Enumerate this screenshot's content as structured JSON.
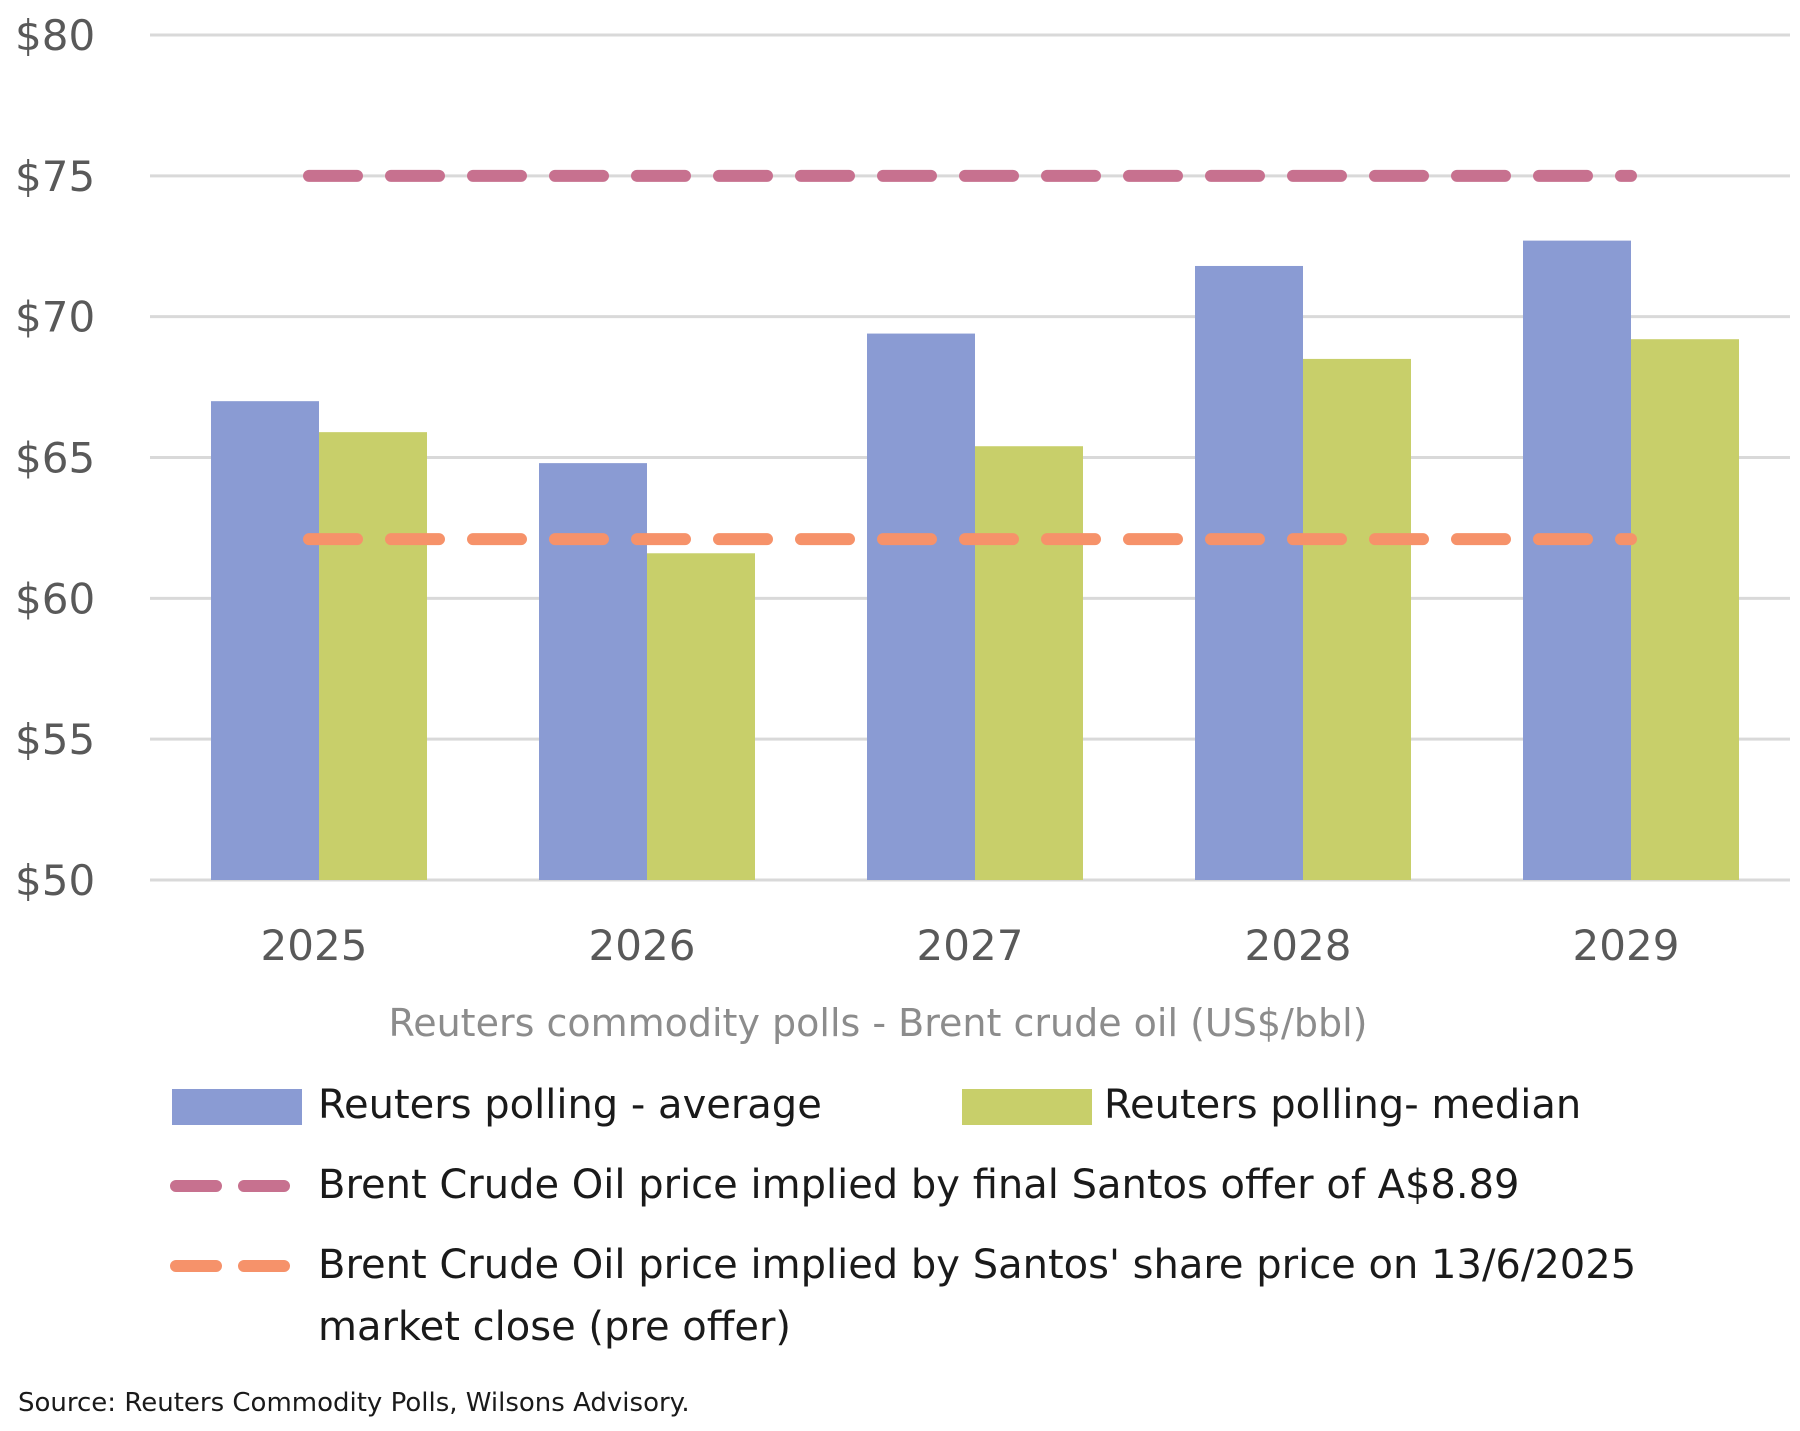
{
  "chart_data": {
    "type": "bar",
    "title": "",
    "xlabel": "Reuters commodity polls - Brent crude oil (US$/bbl)",
    "ylabel": "",
    "categories": [
      "2025",
      "2026",
      "2027",
      "2028",
      "2029"
    ],
    "ylim": [
      50,
      80
    ],
    "yticks": [
      50,
      55,
      60,
      65,
      70,
      75,
      80
    ],
    "ytick_labels": [
      "$50",
      "$55",
      "$60",
      "$65",
      "$70",
      "$75",
      "$80"
    ],
    "grid": true,
    "series": [
      {
        "name": "Reuters polling - average",
        "kind": "bar",
        "color": "#8a9bd3",
        "values": [
          67.0,
          64.8,
          69.4,
          71.8,
          72.7
        ]
      },
      {
        "name": "Reuters polling- median",
        "kind": "bar",
        "color": "#c8cf6a",
        "values": [
          65.9,
          61.6,
          65.4,
          68.5,
          69.2
        ]
      },
      {
        "name": "Brent Crude Oil price implied by final Santos offer of A$8.89",
        "kind": "dashed-line",
        "color": "#c7718f",
        "values": [
          75,
          75,
          75,
          75,
          75
        ]
      },
      {
        "name": "Brent Crude Oil price implied by Santos' share price on 13/6/2025 market close (pre offer)",
        "kind": "dashed-line",
        "color": "#f6926a",
        "values": [
          62.1,
          62.1,
          62.1,
          62.1,
          62.1
        ]
      }
    ],
    "legend_position": "bottom"
  },
  "legend": {
    "avg": "Reuters polling - average",
    "median": "Reuters polling- median",
    "offer": "Brent Crude Oil price implied by final Santos offer of A$8.89",
    "pre_line1": "Brent Crude Oil price implied by Santos' share price on 13/6/2025",
    "pre_line2": "market close (pre offer)"
  },
  "source": "Source: Reuters Commodity Polls, Wilsons Advisory."
}
